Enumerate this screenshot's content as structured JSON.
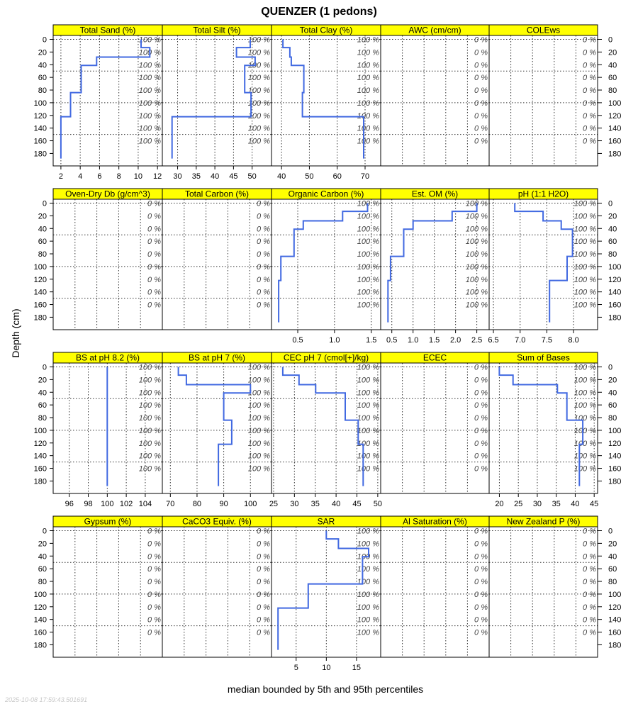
{
  "chart_data": {
    "type": "line",
    "title": "QUENZER (1 pedons)",
    "ylabel": "Depth (cm)",
    "xlabel": "median bounded by 5th and 95th percentiles",
    "timestamp": "2025-10-08 17:59:43.501691",
    "ylim": [
      199,
      -5.6
    ],
    "depth_ticks": [
      0,
      20,
      40,
      60,
      80,
      100,
      120,
      140,
      160,
      180
    ],
    "depth_grid": [
      0,
      50,
      100,
      150
    ],
    "pct_label_depths": [
      0,
      20,
      40,
      60,
      80,
      100,
      120,
      140,
      160
    ],
    "horizon_depths": [
      0,
      13,
      28,
      41,
      84,
      122,
      188
    ],
    "line_color": "#4169E1",
    "strip_color": "#FFFF00",
    "panels": [
      {
        "title": "Total Sand (%)",
        "xlim": [
          1.2,
          12.5
        ],
        "ticks": [
          2,
          4,
          6,
          8,
          10,
          12
        ],
        "values": [
          10.3,
          11.2,
          5.7,
          4.1,
          3.0,
          2.0
        ],
        "pct": "100 %"
      },
      {
        "title": "Total Silt (%)",
        "xlim": [
          25.9,
          55.2
        ],
        "ticks": [
          30,
          35,
          40,
          45,
          50
        ],
        "values": [
          49.5,
          45.8,
          50.8,
          48.0,
          49.7,
          28.5
        ],
        "pct": "100 %"
      },
      {
        "title": "Total Clay (%)",
        "xlim": [
          36.4,
          75.6
        ],
        "ticks": [
          40,
          50,
          60,
          70
        ],
        "values": [
          40.5,
          43.0,
          43.5,
          48.0,
          47.5,
          69.5
        ],
        "pct": "100 %"
      },
      {
        "title": "AWC (cm/cm)",
        "xlim": null,
        "ticks": [],
        "values": [],
        "pct": "0 %"
      },
      {
        "title": "COLEws",
        "xlim": null,
        "ticks": [],
        "values": [],
        "pct": "0 %"
      },
      {
        "title": "Oven-Dry Db (g/cm^3)",
        "xlim": null,
        "ticks": [],
        "values": [],
        "pct": "0 %"
      },
      {
        "title": "Total Carbon (%)",
        "xlim": null,
        "ticks": [],
        "values": [],
        "pct": "0 %"
      },
      {
        "title": "Organic Carbon (%)",
        "xlim": [
          0.143,
          1.628
        ],
        "ticks": [
          "0.5",
          "1.0",
          "1.5"
        ],
        "values": [
          1.45,
          1.11,
          0.575,
          0.45,
          0.27,
          0.24
        ],
        "pct": "100 %"
      },
      {
        "title": "Est. OM (%)",
        "xlim": [
          0.238,
          2.79
        ],
        "ticks": [
          "0.5",
          "1.0",
          "1.5",
          "2.0",
          "2.5"
        ],
        "values": [
          2.5,
          1.92,
          1.0,
          0.78,
          0.47,
          0.41
        ],
        "pct": "100 %"
      },
      {
        "title": "pH (1:1 H2O)",
        "xlim": [
          6.42,
          8.45
        ],
        "ticks": [
          "6.5",
          "7.0",
          "7.5",
          "8.0"
        ],
        "values": [
          6.9,
          7.43,
          7.77,
          7.98,
          7.88,
          7.55
        ],
        "pct": "100 %"
      },
      {
        "title": "BS at pH 8.2 (%)",
        "xlim": [
          94.3,
          105.8
        ],
        "ticks": [
          96,
          98,
          100,
          102,
          104
        ],
        "values": [
          100,
          100,
          100,
          100,
          100,
          100
        ],
        "pct": "100 %"
      },
      {
        "title": "BS at pH 7 (%)",
        "xlim": [
          67,
          107.9
        ],
        "ticks": [
          70,
          80,
          90,
          100
        ],
        "values": [
          73,
          76,
          100,
          90,
          93,
          88
        ],
        "pct": "100 %"
      },
      {
        "title": "CEC pH 7 (cmol[+]/kg)",
        "xlim": [
          24.5,
          50.7
        ],
        "ticks": [
          25,
          30,
          35,
          40,
          45,
          50
        ],
        "values": [
          27.2,
          31.1,
          35.1,
          42.2,
          45.3,
          46.5
        ],
        "pct": "100 %"
      },
      {
        "title": "ECEC",
        "xlim": null,
        "ticks": [],
        "values": [],
        "pct": "0 %"
      },
      {
        "title": "Sum of Bases",
        "xlim": [
          17.3,
          45.9
        ],
        "ticks": [
          20,
          25,
          30,
          35,
          40,
          45
        ],
        "values": [
          20.0,
          23.6,
          35.3,
          37.8,
          42.0,
          41.1
        ],
        "pct": "100 %"
      },
      {
        "title": "Gypsum (%)",
        "xlim": null,
        "ticks": [],
        "values": [],
        "pct": "0 %"
      },
      {
        "title": "CaCO3 Equiv. (%)",
        "xlim": null,
        "ticks": [],
        "values": [],
        "pct": "0 %"
      },
      {
        "title": "SAR",
        "xlim": [
          0.92,
          19.0
        ],
        "ticks": [
          5,
          10,
          15
        ],
        "values": [
          10,
          12,
          17,
          16,
          7,
          2
        ],
        "pct": "100 %"
      },
      {
        "title": "Al Saturation (%)",
        "xlim": null,
        "ticks": [],
        "values": [],
        "pct": "0 %"
      },
      {
        "title": "New Zealand P (%)",
        "xlim": null,
        "ticks": [],
        "values": [],
        "pct": "0 %"
      }
    ]
  }
}
